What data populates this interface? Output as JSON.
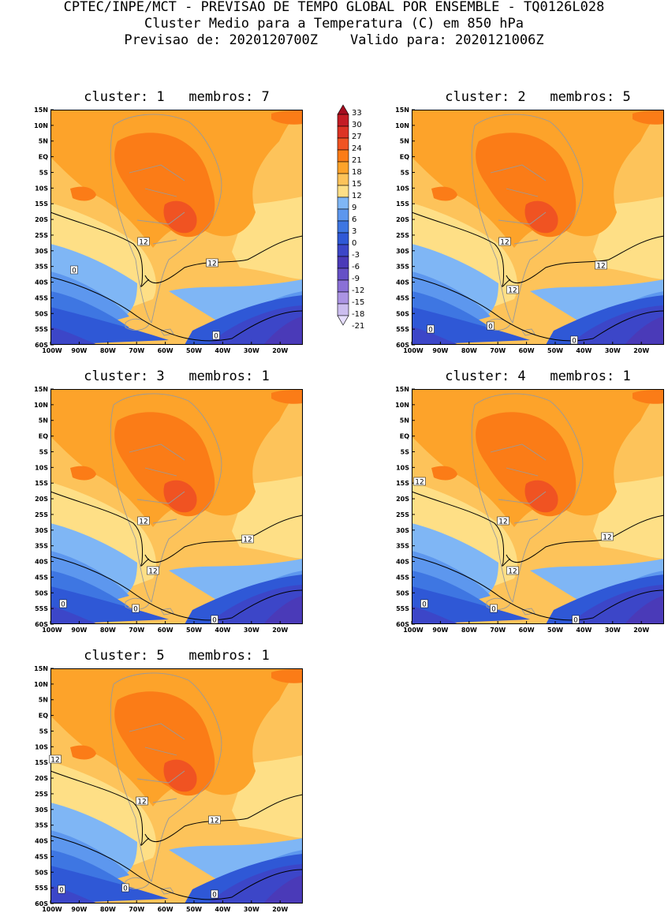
{
  "header": {
    "line1": "CPTEC/INPE/MCT - PREVISAO DE TEMPO GLOBAL POR ENSEMBLE - TQ0126L028",
    "line2": "Cluster Medio para a Temperatura (C) em 850 hPa",
    "line3": "Previsao de: 2020120700Z    Valido para: 2020121006Z"
  },
  "axes": {
    "lat_labels": [
      "15N",
      "10N",
      "5N",
      "EQ",
      "5S",
      "10S",
      "15S",
      "20S",
      "25S",
      "30S",
      "35S",
      "40S",
      "45S",
      "50S",
      "55S",
      "60S"
    ],
    "lon_labels": [
      "100W",
      "90W",
      "80W",
      "70W",
      "60W",
      "50W",
      "40W",
      "30W",
      "20W"
    ]
  },
  "colorbar": {
    "levels": [
      "33",
      "30",
      "27",
      "24",
      "21",
      "18",
      "15",
      "12",
      "9",
      "6",
      "3",
      "0",
      "-3",
      "-6",
      "-9",
      "-12",
      "-15",
      "-18",
      "-21"
    ],
    "colors": [
      "#a50d1f",
      "#c41c24",
      "#dd3324",
      "#f05322",
      "#fb7c17",
      "#fda32a",
      "#fdc35a",
      "#fedf86",
      "#7fb6f5",
      "#5d97ee",
      "#3e76e2",
      "#2f58d6",
      "#3c46c8",
      "#4a3ab8",
      "#6550c6",
      "#8a70d6",
      "#ab94e3",
      "#cbbdef",
      "#e6deff"
    ]
  },
  "panels": [
    {
      "title": "cluster: 1   membros: 7",
      "contour_labels": [
        "12",
        "12",
        "0",
        "0"
      ]
    },
    {
      "title": "cluster: 2   membros: 5",
      "contour_labels": [
        "12",
        "12",
        "12",
        "0",
        "0",
        "0"
      ]
    },
    {
      "title": "cluster: 3   membros: 1",
      "contour_labels": [
        "12",
        "12",
        "12",
        "0",
        "0",
        "0"
      ]
    },
    {
      "title": "cluster: 4   membros: 1",
      "contour_labels": [
        "12",
        "12",
        "12",
        "12",
        "0",
        "0",
        "0"
      ]
    },
    {
      "title": "cluster: 5   membros: 1",
      "contour_labels": [
        "12",
        "12",
        "12",
        "0",
        "0",
        "0"
      ]
    }
  ]
}
